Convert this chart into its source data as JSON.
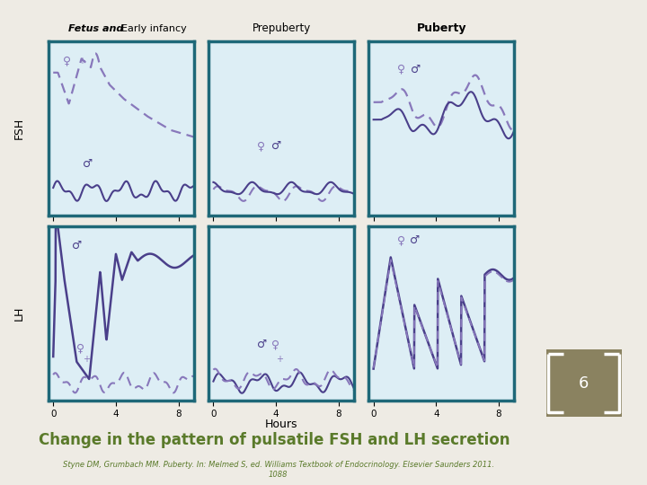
{
  "title": "Change in the pattern of pulsatile FSH and LH secretion",
  "subtitle_line1": "Styne DM, Grumbach MM. Puberty. In: Melmed S, ed. Williams Textbook of Endocrinology. Elsevier Saunders 2011.",
  "subtitle_line2": "1088",
  "col_titles_italic": "Fetus and",
  "col_titles_normal": " Early infancy",
  "col2_title": "Prepuberty",
  "col3_title": "Puberty",
  "row_labels": [
    "FSH",
    "LH"
  ],
  "xlabel": "Hours",
  "bg_color": "#7a7355",
  "panel_border_color": "#1e6878",
  "panel_inner_bg": "#ddeef5",
  "line_solid": "#4a3f8a",
  "line_dashed": "#8878bb",
  "title_color": "#5a7a2a",
  "subtitle_color": "#5a7a2a",
  "slide_bg": "#eeebe4",
  "badge_bg": "#8a8260",
  "badge_number": "6"
}
